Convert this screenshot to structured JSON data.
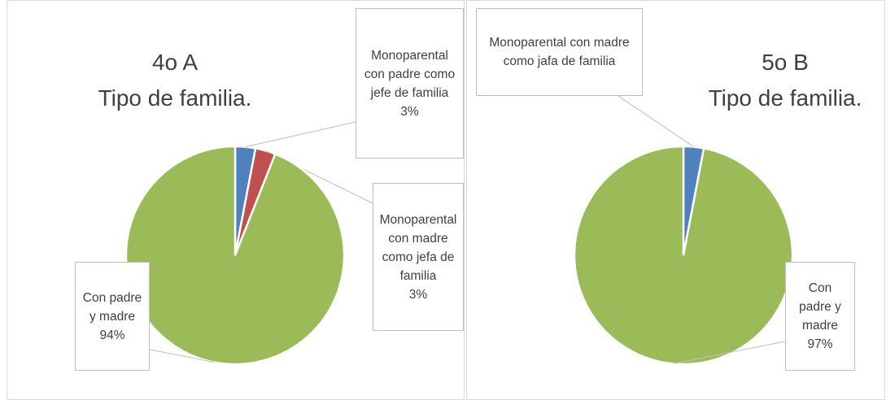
{
  "chart_data": [
    {
      "type": "pie",
      "title": "4o A\nTipo de familia.",
      "categories": [
        "Monoparental con padre como jefe de familia",
        "Monoparental con madre como jefa de familia",
        "Con padre y madre"
      ],
      "values": [
        3,
        3,
        94
      ],
      "value_labels": [
        "3%",
        "3%",
        "94%"
      ],
      "colors": [
        "#4f81bd",
        "#c0504d",
        "#9bbb59"
      ]
    },
    {
      "type": "pie",
      "title": "5o B\nTipo de familia.",
      "categories": [
        "Monoparental con madre como jafa de familia",
        "Con padre y madre"
      ],
      "values": [
        3,
        97
      ],
      "value_labels": [
        null,
        "97%"
      ],
      "colors": [
        "#4f81bd",
        "#9bbb59"
      ]
    }
  ]
}
